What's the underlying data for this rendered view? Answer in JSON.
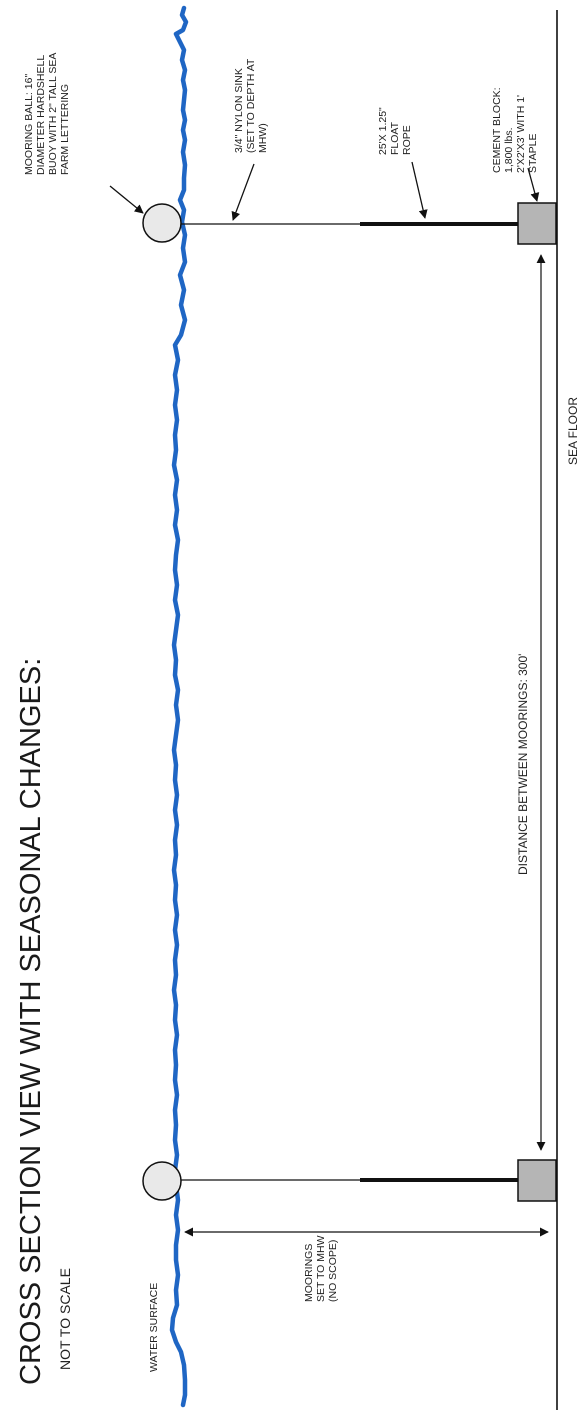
{
  "title": "CROSS SECTION VIEW WITH SEASONAL CHANGES:",
  "subtitle": "NOT TO SCALE",
  "labels": {
    "water_surface": "WATER SURFACE",
    "sea_floor": "SEA FLOOR",
    "distance_between_moorings": "DISTANCE BETWEEN MOORINGS: 300'",
    "moorings_depth": [
      "MOORINGS",
      "SET TO MHW",
      "(NO SCOPE)"
    ],
    "mooring_ball": [
      "MOORING BALL: 16\"",
      "DIAMETER HARDSHELL",
      "BUOY WITH 2\" TALL SEA",
      "FARM LETTERING"
    ],
    "nylon_sink": [
      "3/4\" NYLON SINK",
      "(SET TO DEPTH AT",
      "MHW)"
    ],
    "float_rope": [
      "25'X 1.25\"",
      "FLOAT",
      "ROPE"
    ],
    "cement_block": [
      "CEMENT BLOCK:",
      "1,800 lbs.",
      "2'X2'X3' WITH 1'",
      "STAPLE"
    ]
  },
  "colors": {
    "water": "#1f66c4",
    "line": "#111111",
    "buoy_fill": "#e9e9e9",
    "block_fill": "#b5b5b5"
  }
}
